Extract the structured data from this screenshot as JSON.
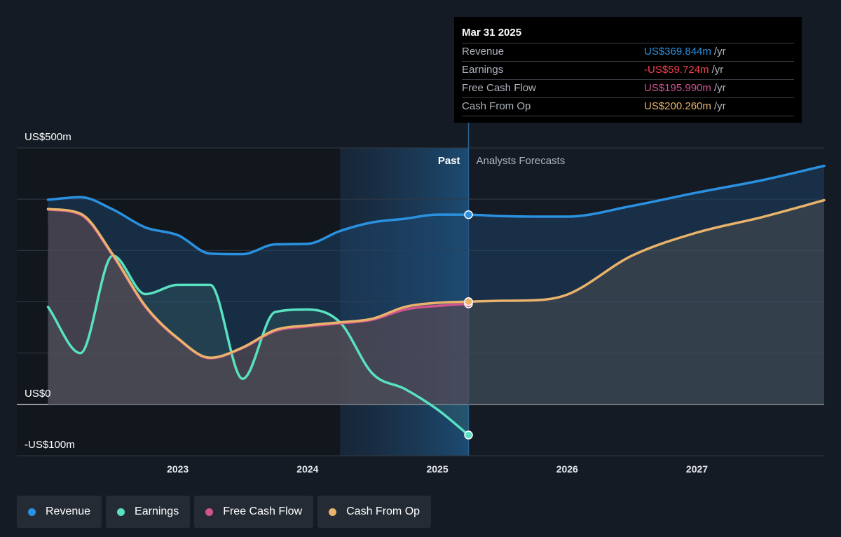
{
  "chart_data": {
    "type": "area",
    "ylim": [
      -100,
      500
    ],
    "y_ticks": [
      {
        "value": 500,
        "label": "US$500m"
      },
      {
        "value": 0,
        "label": "US$0"
      },
      {
        "value": -100,
        "label": "-US$100m"
      }
    ],
    "x_ticks": [
      {
        "value": 2023.0,
        "label": "2023"
      },
      {
        "value": 2024.0,
        "label": "2024"
      },
      {
        "value": 2025.0,
        "label": "2025"
      },
      {
        "value": 2026.0,
        "label": "2026"
      },
      {
        "value": 2027.0,
        "label": "2027"
      }
    ],
    "xlim": [
      2021.76,
      2027.98
    ],
    "past_label": "Past",
    "forecast_label": "Analysts Forecasts",
    "divider_x": 2025.24,
    "highlight_start_x": 2024.25,
    "series": [
      {
        "name": "Revenue",
        "color": "#2a91e0",
        "points": [
          [
            2022.0,
            399
          ],
          [
            2022.25,
            404
          ],
          [
            2022.5,
            380
          ],
          [
            2022.75,
            345
          ],
          [
            2023.0,
            330
          ],
          [
            2023.25,
            294
          ],
          [
            2023.5,
            293
          ],
          [
            2023.75,
            312
          ],
          [
            2024.0,
            313
          ],
          [
            2024.25,
            338
          ],
          [
            2024.5,
            355
          ],
          [
            2024.75,
            362
          ],
          [
            2025.0,
            370
          ],
          [
            2025.24,
            369.844
          ],
          [
            2025.5,
            367
          ],
          [
            2025.75,
            366
          ],
          [
            2026.0,
            366
          ],
          [
            2026.5,
            387
          ],
          [
            2027.0,
            413
          ],
          [
            2027.5,
            437
          ],
          [
            2027.98,
            465
          ]
        ]
      },
      {
        "name": "Earnings",
        "color": "#58e2c2",
        "points": [
          [
            2022.0,
            190
          ],
          [
            2022.25,
            100
          ],
          [
            2022.5,
            290
          ],
          [
            2022.75,
            215
          ],
          [
            2023.0,
            233
          ],
          [
            2023.25,
            233
          ],
          [
            2023.5,
            50
          ],
          [
            2023.75,
            180
          ],
          [
            2024.0,
            185
          ],
          [
            2024.25,
            160
          ],
          [
            2024.5,
            60
          ],
          [
            2024.75,
            30
          ],
          [
            2025.0,
            -10
          ],
          [
            2025.24,
            -59.724
          ]
        ]
      },
      {
        "name": "Free Cash Flow",
        "color": "#d0548f",
        "points": [
          [
            2022.0,
            380
          ],
          [
            2022.25,
            370
          ],
          [
            2022.5,
            290
          ],
          [
            2022.75,
            190
          ],
          [
            2023.0,
            128
          ],
          [
            2023.25,
            90
          ],
          [
            2023.5,
            110
          ],
          [
            2023.75,
            143
          ],
          [
            2024.0,
            152
          ],
          [
            2024.25,
            158
          ],
          [
            2024.5,
            165
          ],
          [
            2024.75,
            185
          ],
          [
            2025.0,
            192
          ],
          [
            2025.24,
            195.99
          ]
        ]
      },
      {
        "name": "Cash From Op",
        "color": "#e9b36b",
        "points": [
          [
            2022.0,
            381
          ],
          [
            2022.25,
            372
          ],
          [
            2022.5,
            292
          ],
          [
            2022.75,
            192
          ],
          [
            2023.0,
            129
          ],
          [
            2023.25,
            91
          ],
          [
            2023.5,
            111
          ],
          [
            2023.75,
            145
          ],
          [
            2024.0,
            154
          ],
          [
            2024.25,
            160
          ],
          [
            2024.5,
            167
          ],
          [
            2024.75,
            190
          ],
          [
            2025.0,
            198
          ],
          [
            2025.24,
            200.26
          ],
          [
            2025.5,
            202
          ],
          [
            2025.75,
            203
          ],
          [
            2026.0,
            214
          ],
          [
            2026.5,
            290
          ],
          [
            2027.0,
            335
          ],
          [
            2027.5,
            365
          ],
          [
            2027.98,
            398
          ]
        ]
      }
    ]
  },
  "tooltip": {
    "date": "Mar 31 2025",
    "rows": [
      {
        "name": "Revenue",
        "value": "US$369.844m",
        "unit": "/yr",
        "color": "#2a91e0"
      },
      {
        "name": "Earnings",
        "value": "-US$59.724m",
        "unit": "/yr",
        "color": "#f2404e"
      },
      {
        "name": "Free Cash Flow",
        "value": "US$195.990m",
        "unit": "/yr",
        "color": "#d0548f"
      },
      {
        "name": "Cash From Op",
        "value": "US$200.260m",
        "unit": "/yr",
        "color": "#e9b36b"
      }
    ]
  },
  "legend": [
    {
      "label": "Revenue",
      "color": "#2a91e0"
    },
    {
      "label": "Earnings",
      "color": "#58e2c2"
    },
    {
      "label": "Free Cash Flow",
      "color": "#d0548f"
    },
    {
      "label": "Cash From Op",
      "color": "#e9b36b"
    }
  ]
}
